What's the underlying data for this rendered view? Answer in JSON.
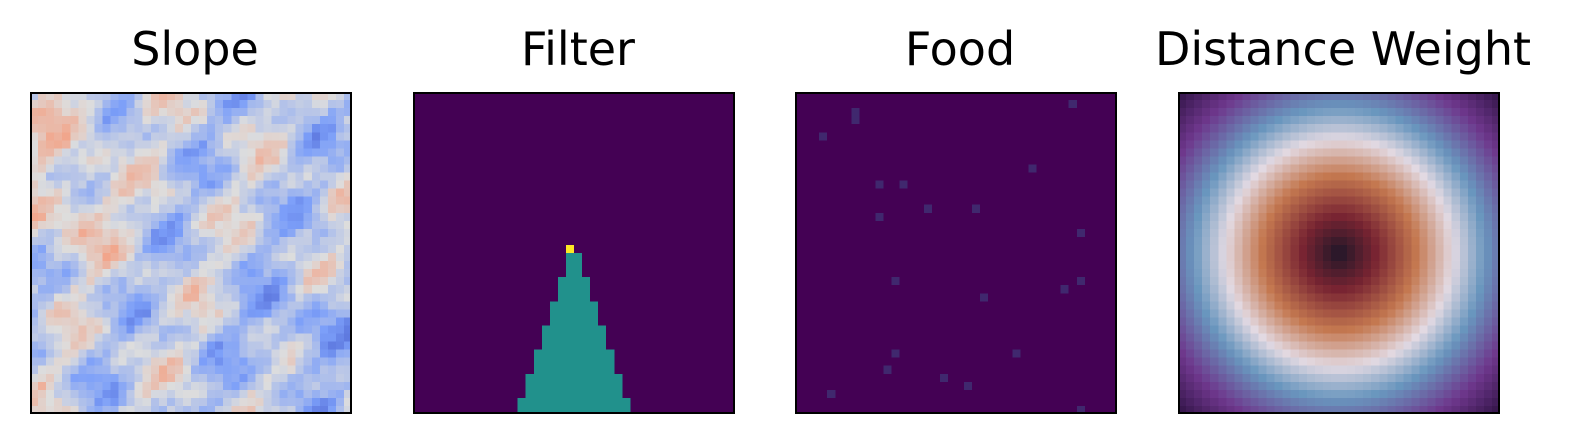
{
  "chart_data": [
    {
      "type": "heatmap",
      "title": "Slope",
      "grid": false,
      "colormap": "coolwarm",
      "resolution": [
        40,
        40
      ],
      "ticks": "none"
    },
    {
      "type": "heatmap",
      "title": "Filter",
      "grid": false,
      "colormap": "viridis",
      "resolution": [
        40,
        40
      ],
      "values_present": [
        0,
        1,
        2
      ],
      "ticks": "none"
    },
    {
      "type": "heatmap",
      "title": "Food",
      "grid": false,
      "colormap": "viridis",
      "resolution": [
        40,
        40
      ],
      "ticks": "none"
    },
    {
      "type": "heatmap",
      "title": "Distance Weight",
      "grid": false,
      "colormap": "twilight_shifted",
      "resolution": [
        40,
        40
      ],
      "ticks": "none"
    }
  ]
}
